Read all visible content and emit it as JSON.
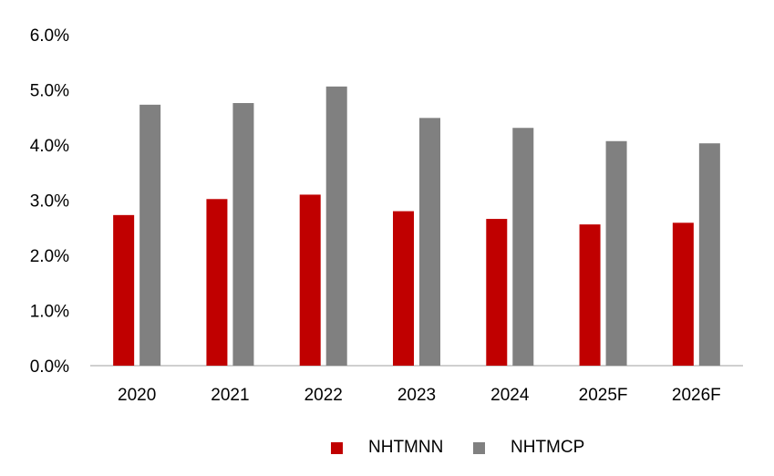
{
  "chart_data": {
    "type": "bar",
    "title": "",
    "xlabel": "",
    "ylabel": "",
    "categories": [
      "2020",
      "2021",
      "2022",
      "2023",
      "2024",
      "2025F",
      "2026F"
    ],
    "series": [
      {
        "name": "NHTMNN",
        "color": "#c00000",
        "values": [
          2.73,
          3.02,
          3.1,
          2.8,
          2.66,
          2.56,
          2.59
        ]
      },
      {
        "name": "NHTMCP",
        "color": "#808080",
        "values": [
          4.73,
          4.76,
          5.06,
          4.49,
          4.31,
          4.07,
          4.03
        ]
      }
    ],
    "ylim": [
      0,
      6
    ],
    "yticks": [
      0,
      1,
      2,
      3,
      4,
      5,
      6
    ],
    "ytick_labels": [
      "0.0%",
      "1.0%",
      "2.0%",
      "3.0%",
      "4.0%",
      "5.0%",
      "6.0%"
    ],
    "grid": false,
    "legend_position": "bottom"
  }
}
